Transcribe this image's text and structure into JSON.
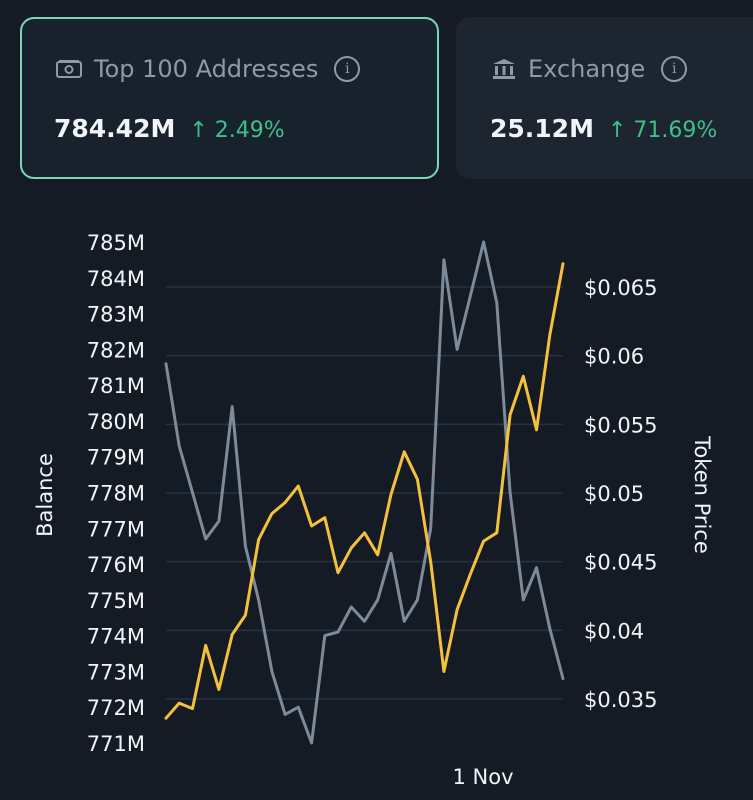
{
  "cards": [
    {
      "label": "Top 100 Addresses",
      "value": "784.42M",
      "change": "2.49%",
      "icon": "wallet-icon",
      "active": true
    },
    {
      "label": "Exchange",
      "value": "25.12M",
      "change": "71.69%",
      "icon": "bank-icon",
      "active": false
    }
  ],
  "colors": {
    "accent": "#7fd6b4",
    "positive": "#3fc08a",
    "balance_line": "#7c8a99",
    "price_line": "#f4c13d",
    "background": "#141b24"
  },
  "chart_data": {
    "type": "line",
    "xlabel": "",
    "x_ticks": [
      "1 Nov"
    ],
    "left_axis": {
      "label": "Balance",
      "ticks": [
        "785M",
        "784M",
        "783M",
        "782M",
        "781M",
        "780M",
        "779M",
        "778M",
        "777M",
        "776M",
        "775M",
        "774M",
        "773M",
        "772M",
        "771M"
      ],
      "ylim": [
        771,
        785
      ],
      "unit": "M"
    },
    "right_axis": {
      "label": "Token Price",
      "ticks": [
        "$0.065",
        "$0.06",
        "$0.055",
        "$0.05",
        "$0.045",
        "$0.04",
        "$0.035"
      ],
      "ylim": [
        0.035,
        0.065
      ]
    },
    "grid": true,
    "series": [
      {
        "name": "Balance",
        "axis": "left",
        "color": "#7c8a99",
        "values": [
          781.6,
          779.3,
          778.0,
          776.7,
          777.2,
          780.4,
          776.5,
          775.0,
          773.0,
          771.8,
          772.0,
          771.0,
          774.0,
          774.1,
          774.8,
          774.4,
          775.0,
          776.3,
          774.4,
          775.0,
          777.0,
          784.5,
          782.0,
          783.5,
          785.0,
          783.3,
          778.0,
          775.0,
          775.9,
          774.2,
          772.8
        ]
      },
      {
        "name": "Token Price",
        "axis": "right",
        "color": "#f4c13d",
        "values": [
          0.0336,
          0.0347,
          0.0343,
          0.0389,
          0.0357,
          0.0397,
          0.0411,
          0.0466,
          0.0485,
          0.0493,
          0.0505,
          0.0476,
          0.0482,
          0.0442,
          0.046,
          0.0471,
          0.0455,
          0.0499,
          0.053,
          0.051,
          0.045,
          0.037,
          0.0415,
          0.0441,
          0.0465,
          0.0471,
          0.0557,
          0.0585,
          0.0546,
          0.0615,
          0.0667
        ]
      }
    ]
  }
}
